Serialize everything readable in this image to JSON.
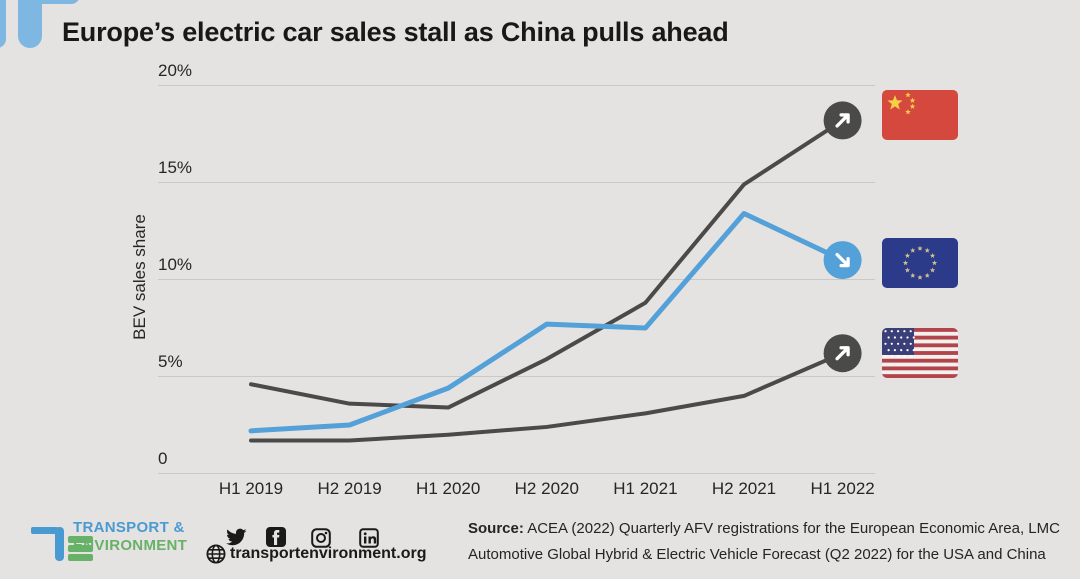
{
  "header": {
    "title": "Europe’s electric car sales stall as China pulls ahead"
  },
  "chart_data": {
    "type": "line",
    "title": "Europe’s electric car sales stall as China pulls ahead",
    "xlabel": "",
    "ylabel": "BEV sales share",
    "ylim": [
      0,
      20
    ],
    "grid": true,
    "legend_position": "right-flags",
    "yticks": [
      {
        "value": 0,
        "label": "0"
      },
      {
        "value": 5,
        "label": "5%"
      },
      {
        "value": 10,
        "label": "10%"
      },
      {
        "value": 15,
        "label": "15%"
      },
      {
        "value": 20,
        "label": "20%"
      }
    ],
    "categories": [
      "H1 2019",
      "H2 2019",
      "H1 2020",
      "H2 2020",
      "H1 2021",
      "H2 2021",
      "H1 2022"
    ],
    "series": [
      {
        "name": "USA",
        "color": "#4a4a48",
        "trend": "up",
        "trend_icon": "arrow-up-right-icon",
        "flag_icon": "usa-flag",
        "values": [
          1.7,
          1.7,
          2.0,
          2.4,
          3.1,
          4.0,
          6.2
        ]
      },
      {
        "name": "China",
        "color": "#4a4a48",
        "trend": "up",
        "trend_icon": "arrow-up-right-icon",
        "flag_icon": "china-flag",
        "values": [
          4.6,
          3.6,
          3.4,
          5.9,
          8.8,
          14.9,
          18.2
        ]
      },
      {
        "name": "EU",
        "color": "#54a0d8",
        "trend": "down",
        "trend_icon": "arrow-down-right-icon",
        "flag_icon": "eu-flag",
        "values": [
          2.2,
          2.5,
          4.4,
          7.7,
          7.5,
          13.4,
          11.0
        ]
      }
    ]
  },
  "colors": {
    "background": "#e4e3e1",
    "grid": "#c9c9c7",
    "tick_text": "#262624",
    "title_text": "#181816",
    "dark_series": "#4a4a48",
    "blue_series": "#54a0d8",
    "te_blue": "#4a9ad2",
    "te_green": "#68b169",
    "deco_blue": "#7db7e2"
  },
  "footer": {
    "logo_line1": "TRANSPORT &",
    "logo_line2": "ENVIRONMENT",
    "social_icons": [
      "twitter-icon",
      "facebook-icon",
      "instagram-icon",
      "linkedin-icon"
    ],
    "website_icon": "globe-icon",
    "website": "transportenvironment.org",
    "source_label": "Source:",
    "source_text": "ACEA (2022) Quarterly AFV registrations for the European Economic Area, LMC Automotive Global Hybrid & Electric Vehicle Forecast (Q2 2022) for the USA and China"
  }
}
